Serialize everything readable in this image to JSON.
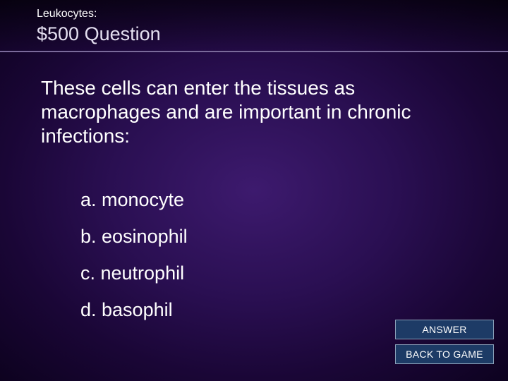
{
  "header": {
    "category": "Leukocytes:",
    "value": "$500 Question"
  },
  "question": "These cells can enter the tissues as macrophages and are important in chronic infections:",
  "options": [
    "a. monocyte",
    "b. eosinophil",
    "c. neutrophil",
    "d. basophil"
  ],
  "buttons": {
    "answer": "ANSWER",
    "back": "BACK TO GAME"
  },
  "style": {
    "background_gradient": [
      "#3d1a6e",
      "#2a0f52",
      "#1a0636",
      "#0d021f"
    ],
    "header_border": "#7a6a9a",
    "text_color": "#ffffff",
    "value_color": "#e4dff0",
    "button_bg": "#1d3b66",
    "button_border": "#8aa0b8",
    "category_fontsize": 16,
    "value_fontsize": 27,
    "question_fontsize": 28,
    "option_fontsize": 27,
    "button_fontsize": 14
  }
}
